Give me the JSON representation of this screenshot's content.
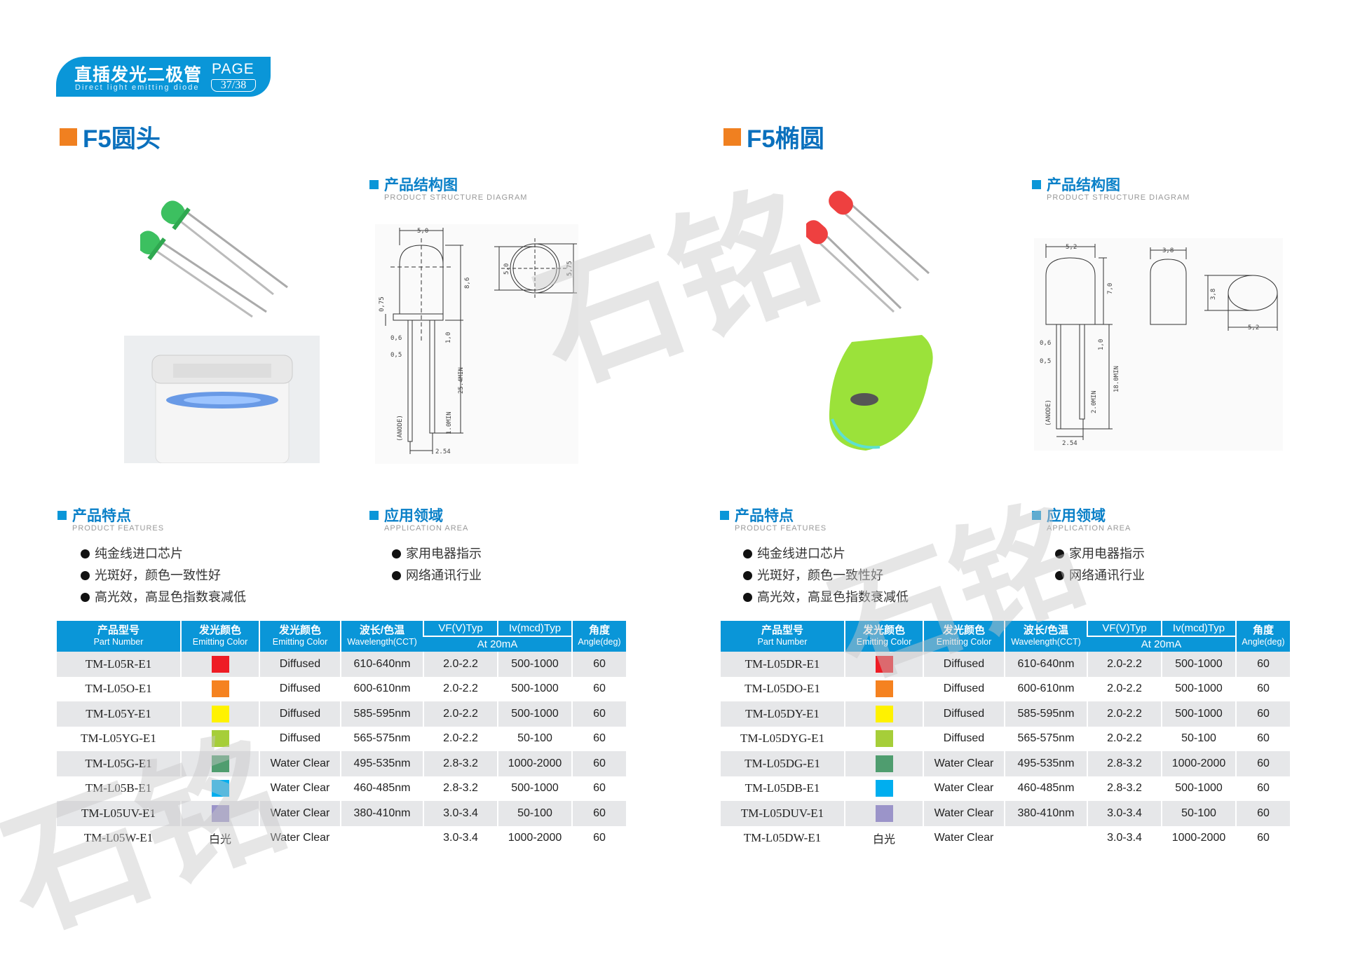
{
  "header": {
    "title_cn": "直插发光二极管",
    "title_en": "Direct light emitting diode",
    "page_label": "PAGE",
    "page_num": "37/38",
    "color": "#0a96d8"
  },
  "watermark": "石铭",
  "sections": [
    {
      "title": "F5圆头",
      "structure": {
        "heading": "产品结构图",
        "sub": "PRODUCT STRUCTURE DIAGRAM",
        "dims": {
          "w": "5,0",
          "h": "8,6",
          "flange": "0,75",
          "lead_w1": "0,6",
          "lead_w2": "0,5",
          "kink": "1,0",
          "lead_len": "25.4MIN",
          "diff": "1.0MIN",
          "pitch": "2.54",
          "anode": "(ANODE)",
          "d1": "5,0",
          "d2": "5,75"
        }
      },
      "features": {
        "heading": "产品特点",
        "sub": "PRODUCT FEATURES",
        "items": [
          "纯金线进口芯片",
          "光斑好，颜色一致性好",
          "高光效，高显色指数衰减低"
        ]
      },
      "application": {
        "heading": "应用领域",
        "sub": "APPLICATION AREA",
        "items": [
          "家用电器指示",
          "网络通讯行业"
        ]
      },
      "led_color": "#3cc060",
      "rows": [
        {
          "part": "TM-L05R-E1",
          "color": "#ee1c25",
          "lens": "Diffused",
          "wl": "610-640nm",
          "vf": "2.0-2.2",
          "iv": "500-1000",
          "angle": "60"
        },
        {
          "part": "TM-L05O-E1",
          "color": "#f58220",
          "lens": "Diffused",
          "wl": "600-610nm",
          "vf": "2.0-2.2",
          "iv": "500-1000",
          "angle": "60"
        },
        {
          "part": "TM-L05Y-E1",
          "color": "#fff200",
          "lens": "Diffused",
          "wl": "585-595nm",
          "vf": "2.0-2.2",
          "iv": "500-1000",
          "angle": "60"
        },
        {
          "part": "TM-L05YG-E1",
          "color": "#a6ce39",
          "lens": "Diffused",
          "wl": "565-575nm",
          "vf": "2.0-2.2",
          "iv": "50-100",
          "angle": "60"
        },
        {
          "part": "TM-L05G-E1",
          "color": "#4f9d6f",
          "lens": "Water Clear",
          "wl": "495-535nm",
          "vf": "2.8-3.2",
          "iv": "1000-2000",
          "angle": "60"
        },
        {
          "part": "TM-L05B-E1",
          "color": "#00aeef",
          "lens": "Water Clear",
          "wl": "460-485nm",
          "vf": "2.8-3.2",
          "iv": "500-1000",
          "angle": "60"
        },
        {
          "part": "TM-L05UV-E1",
          "color": "#9b94c9",
          "lens": "Water Clear",
          "wl": "380-410nm",
          "vf": "3.0-3.4",
          "iv": "50-100",
          "angle": "60"
        },
        {
          "part": "TM-L05W-E1",
          "color_text": "白光",
          "lens": "Water Clear",
          "wl": "",
          "vf": "3.0-3.4",
          "iv": "1000-2000",
          "angle": "60"
        }
      ]
    },
    {
      "title": "F5椭圆",
      "structure": {
        "heading": "产品结构图",
        "sub": "PRODUCT STRUCTURE DIAGRAM",
        "dims": {
          "w": "5,2",
          "h": "7,0",
          "side_w": "3,8",
          "lead_w1": "0,6",
          "lead_w2": "0,5",
          "kink": "1,0",
          "lead_len": "18.0MIN",
          "diff": "2.0MIN",
          "pitch": "2.54",
          "anode": "(ANODE)",
          "ell_h": "3,8",
          "ell_w": "5,2"
        }
      },
      "features": {
        "heading": "产品特点",
        "sub": "PRODUCT FEATURES",
        "items": [
          "纯金线进口芯片",
          "光斑好，颜色一致性好",
          "高光效，高显色指数衰减低"
        ]
      },
      "application": {
        "heading": "应用领域",
        "sub": "APPLICATION AREA",
        "items": [
          "家用电器指示",
          "网络通讯行业"
        ]
      },
      "led_color": "#ee4040",
      "rows": [
        {
          "part": "TM-L05DR-E1",
          "color": "#ee1c25",
          "lens": "Diffused",
          "wl": "610-640nm",
          "vf": "2.0-2.2",
          "iv": "500-1000",
          "angle": "60"
        },
        {
          "part": "TM-L05DO-E1",
          "color": "#f58220",
          "lens": "Diffused",
          "wl": "600-610nm",
          "vf": "2.0-2.2",
          "iv": "500-1000",
          "angle": "60"
        },
        {
          "part": "TM-L05DY-E1",
          "color": "#fff200",
          "lens": "Diffused",
          "wl": "585-595nm",
          "vf": "2.0-2.2",
          "iv": "500-1000",
          "angle": "60"
        },
        {
          "part": "TM-L05DYG-E1",
          "color": "#a6ce39",
          "lens": "Diffused",
          "wl": "565-575nm",
          "vf": "2.0-2.2",
          "iv": "50-100",
          "angle": "60"
        },
        {
          "part": "TM-L05DG-E1",
          "color": "#4f9d6f",
          "lens": "Water Clear",
          "wl": "495-535nm",
          "vf": "2.8-3.2",
          "iv": "1000-2000",
          "angle": "60"
        },
        {
          "part": "TM-L05DB-E1",
          "color": "#00aeef",
          "lens": "Water Clear",
          "wl": "460-485nm",
          "vf": "2.8-3.2",
          "iv": "500-1000",
          "angle": "60"
        },
        {
          "part": "TM-L05DUV-E1",
          "color": "#9b94c9",
          "lens": "Water Clear",
          "wl": "380-410nm",
          "vf": "3.0-3.4",
          "iv": "50-100",
          "angle": "60"
        },
        {
          "part": "TM-L05DW-E1",
          "color_text": "白光",
          "lens": "Water Clear",
          "wl": "",
          "vf": "3.0-3.4",
          "iv": "1000-2000",
          "angle": "60"
        }
      ]
    }
  ],
  "table_header": {
    "part_cn": "产品型号",
    "part_en": "Part Number",
    "color_cn": "发光颜色",
    "color_en": "Emitting Color",
    "lens_cn": "发光颜色",
    "lens_en": "Emitting Color",
    "wl_cn": "波长/色温",
    "wl_en": "Wavelength(CCT)",
    "vf": "VF(V)Typ",
    "iv": "Iv(mcd)Typ",
    "cond": "At 20mA",
    "angle_cn": "角度",
    "angle_en": "Angle(deg)"
  }
}
